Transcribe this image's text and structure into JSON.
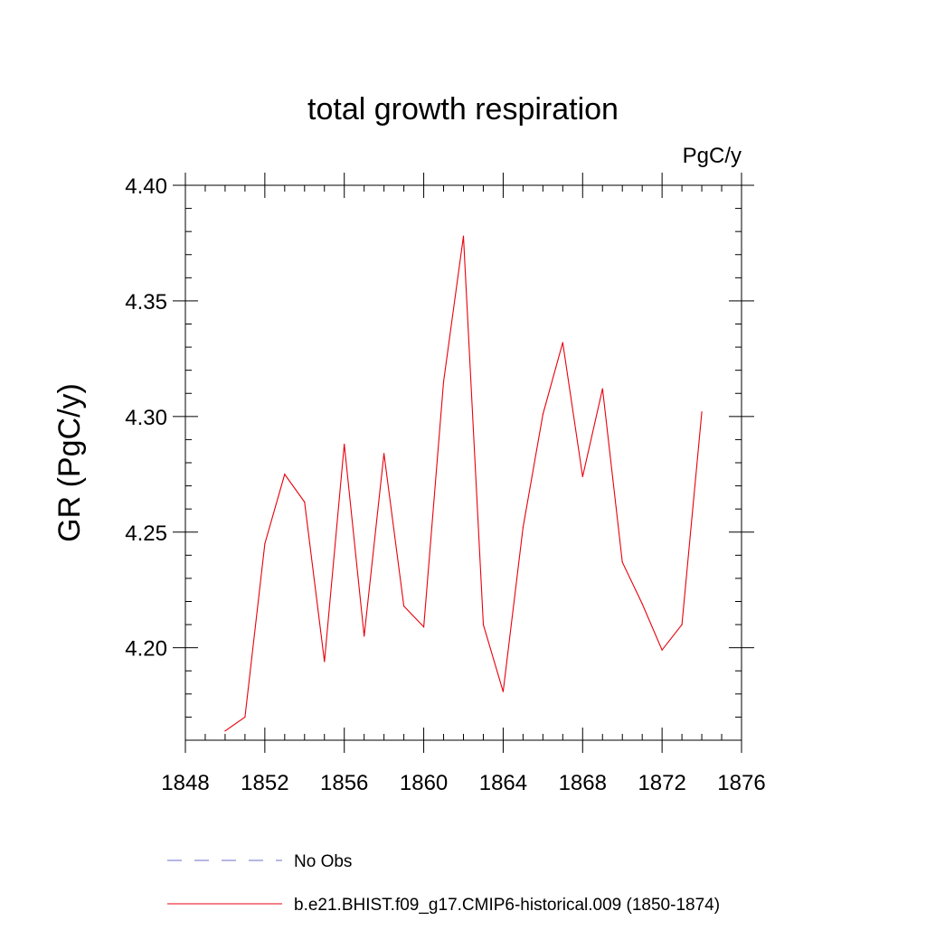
{
  "chart_data": {
    "type": "line",
    "title": "total growth respiration",
    "units_label": "PgC/y",
    "ylabel": "GR  (PgC/y)",
    "xlabel": "",
    "xlim": [
      1848,
      1876
    ],
    "ylim": [
      4.16,
      4.4
    ],
    "x_ticks": [
      1848,
      1852,
      1856,
      1860,
      1864,
      1868,
      1872,
      1876
    ],
    "x_tick_labels": [
      "1848",
      "1852",
      "1856",
      "1860",
      "1864",
      "1868",
      "1872",
      "1876"
    ],
    "y_ticks": [
      4.2,
      4.25,
      4.3,
      4.35,
      4.4
    ],
    "y_tick_labels": [
      "4.20",
      "4.25",
      "4.30",
      "4.35",
      "4.40"
    ],
    "grid": false,
    "legend_position": "bottom",
    "series": [
      {
        "name": "b.e21.BHIST.f09_g17.CMIP6-historical.009 (1850-1874)",
        "color": "#e8000b",
        "style": "solid",
        "x": [
          1850,
          1851,
          1852,
          1853,
          1854,
          1855,
          1856,
          1857,
          1858,
          1859,
          1860,
          1861,
          1862,
          1863,
          1864,
          1865,
          1866,
          1867,
          1868,
          1869,
          1870,
          1871,
          1872,
          1873,
          1874
        ],
        "values": [
          4.164,
          4.17,
          4.245,
          4.275,
          4.263,
          4.194,
          4.288,
          4.205,
          4.284,
          4.218,
          4.209,
          4.315,
          4.378,
          4.21,
          4.181,
          4.252,
          4.301,
          4.332,
          4.274,
          4.312,
          4.237,
          4.219,
          4.199,
          4.21,
          4.302
        ]
      }
    ],
    "legend": [
      {
        "label": "No Obs",
        "color": "#6e6ec8",
        "style": "dashed"
      },
      {
        "label": "b.e21.BHIST.f09_g17.CMIP6-historical.009 (1850-1874)",
        "color": "#e8000b",
        "style": "solid"
      }
    ]
  }
}
